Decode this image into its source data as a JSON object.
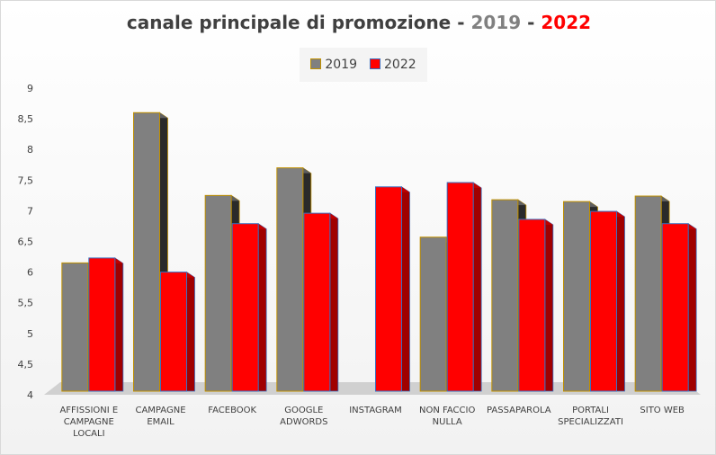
{
  "chart_data": {
    "type": "bar",
    "title": {
      "main": "canale principale di promozione",
      "sep1": "- ",
      "y1": "2019",
      "sep2": " - ",
      "y2": "2022"
    },
    "categories": [
      [
        "AFFISSIONI E",
        "CAMPAGNE",
        "LOCALI"
      ],
      [
        "CAMPAGNE",
        "EMAIL"
      ],
      [
        "FACEBOOK"
      ],
      [
        "GOOGLE",
        "ADWORDS"
      ],
      [
        "INSTAGRAM"
      ],
      [
        "NON FACCIO",
        "NULLA"
      ],
      [
        "PASSAPAROLA"
      ],
      [
        "PORTALI",
        "SPECIALIZZATI"
      ],
      [
        "SITO WEB"
      ]
    ],
    "series": [
      {
        "name": "2019",
        "color": "#808080",
        "border": "#c09000",
        "values": [
          6.15,
          8.6,
          7.25,
          7.7,
          null,
          6.57,
          7.18,
          7.15,
          7.24
        ]
      },
      {
        "name": "2022",
        "color": "#ff0000",
        "border": "#3a6fc0",
        "values": [
          6.23,
          6.0,
          6.79,
          6.96,
          7.39,
          7.46,
          6.86,
          6.99,
          6.79
        ]
      }
    ],
    "ylim": [
      4,
      9
    ],
    "yticks": [
      "4",
      "4,5",
      "5",
      "5,5",
      "6",
      "6,5",
      "7",
      "7,5",
      "8",
      "8,5",
      "9"
    ],
    "legend": "top-center",
    "grid": false
  }
}
